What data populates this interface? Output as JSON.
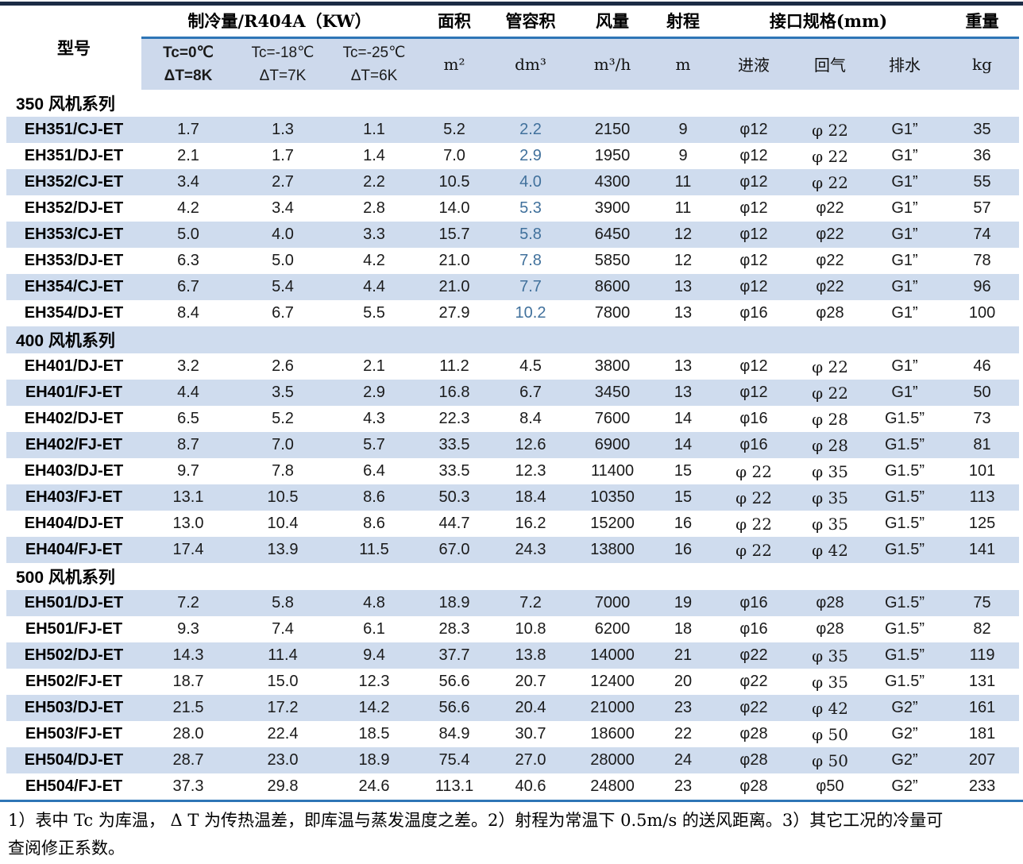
{
  "colors": {
    "rule_dark": "#1c2b45",
    "rule_blue": "#2e75b6",
    "band": "#cdd9ec",
    "stripe": "#cfdcee",
    "accent_text": "#41719c"
  },
  "table": {
    "header": {
      "model": "型号",
      "cooling_group": "制冷量/R404A（KW）",
      "temp_cols": [
        {
          "line1": "Tc=0℃",
          "line2": "ΔT=8K"
        },
        {
          "line1": "Tc=-18℃",
          "line2": "ΔT=7K"
        },
        {
          "line1": "Tc=-25℃",
          "line2": "ΔT=6K"
        }
      ],
      "area_label": "面积",
      "area_unit": "m²",
      "tube_label": "管容积",
      "tube_unit": "dm³",
      "flow_label": "风量",
      "flow_unit": "m³/h",
      "throw_label": "射程",
      "throw_unit": "m",
      "connections_group": "接口规格(mm)",
      "conn_cols": [
        "进液",
        "回气",
        "排水"
      ],
      "weight_label": "重量",
      "weight_unit": "kg"
    },
    "sections": [
      {
        "title": "350 风机系列",
        "vol_accent": true,
        "rows": [
          [
            "EH351/CJ-ET",
            "1.7",
            "1.3",
            "1.1",
            "5.2",
            "2.2",
            "2150",
            "9",
            "φ12",
            "φ 22",
            "G1”",
            "35"
          ],
          [
            "EH351/DJ-ET",
            "2.1",
            "1.7",
            "1.4",
            "7.0",
            "2.9",
            "1950",
            "9",
            "φ12",
            "φ 22",
            "G1”",
            "36"
          ],
          [
            "EH352/CJ-ET",
            "3.4",
            "2.7",
            "2.2",
            "10.5",
            "4.0",
            "4300",
            "11",
            "φ12",
            "φ 22",
            "G1”",
            "55"
          ],
          [
            "EH352/DJ-ET",
            "4.2",
            "3.4",
            "2.8",
            "14.0",
            "5.3",
            "3900",
            "11",
            "φ12",
            "φ22",
            "G1”",
            "57"
          ],
          [
            "EH353/CJ-ET",
            "5.0",
            "4.0",
            "3.3",
            "15.7",
            "5.8",
            "6450",
            "12",
            "φ12",
            "φ22",
            "G1”",
            "74"
          ],
          [
            "EH353/DJ-ET",
            "6.3",
            "5.0",
            "4.2",
            "21.0",
            "7.8",
            "5850",
            "12",
            "φ12",
            "φ22",
            "G1”",
            "78"
          ],
          [
            "EH354/CJ-ET",
            "6.7",
            "5.4",
            "4.4",
            "21.0",
            "7.7",
            "8600",
            "13",
            "φ12",
            "φ22",
            "G1”",
            "96"
          ],
          [
            "EH354/DJ-ET",
            "8.4",
            "6.7",
            "5.5",
            "27.9",
            "10.2",
            "7800",
            "13",
            "φ16",
            "φ28",
            "G1”",
            "100"
          ]
        ]
      },
      {
        "title": "400 风机系列",
        "vol_accent": false,
        "rows": [
          [
            "EH401/DJ-ET",
            "3.2",
            "2.6",
            "2.1",
            "11.2",
            "4.5",
            "3800",
            "13",
            "φ12",
            "φ 22",
            "G1”",
            "46"
          ],
          [
            "EH401/FJ-ET",
            "4.4",
            "3.5",
            "2.9",
            "16.8",
            "6.7",
            "3450",
            "13",
            "φ12",
            "φ 22",
            "G1”",
            "50"
          ],
          [
            "EH402/DJ-ET",
            "6.5",
            "5.2",
            "4.3",
            "22.3",
            "8.4",
            "7600",
            "14",
            "φ16",
            "φ 28",
            "G1.5”",
            "73"
          ],
          [
            "EH402/FJ-ET",
            "8.7",
            "7.0",
            "5.7",
            "33.5",
            "12.6",
            "6900",
            "14",
            "φ16",
            "φ 28",
            "G1.5”",
            "81"
          ],
          [
            "EH403/DJ-ET",
            "9.7",
            "7.8",
            "6.4",
            "33.5",
            "12.3",
            "11400",
            "15",
            "φ 22",
            "φ 35",
            "G1.5”",
            "101"
          ],
          [
            "EH403/FJ-ET",
            "13.1",
            "10.5",
            "8.6",
            "50.3",
            "18.4",
            "10350",
            "15",
            "φ 22",
            "φ 35",
            "G1.5”",
            "113"
          ],
          [
            "EH404/DJ-ET",
            "13.0",
            "10.4",
            "8.6",
            "44.7",
            "16.2",
            "15200",
            "16",
            "φ 22",
            "φ 35",
            "G1.5”",
            "125"
          ],
          [
            "EH404/FJ-ET",
            "17.4",
            "13.9",
            "11.5",
            "67.0",
            "24.3",
            "13800",
            "16",
            "φ 22",
            "φ 42",
            "G1.5”",
            "141"
          ]
        ]
      },
      {
        "title": "500 风机系列",
        "vol_accent": false,
        "rows": [
          [
            "EH501/DJ-ET",
            "7.2",
            "5.8",
            "4.8",
            "18.9",
            "7.2",
            "7000",
            "19",
            "φ16",
            "φ28",
            "G1.5”",
            "75"
          ],
          [
            "EH501/FJ-ET",
            "9.3",
            "7.4",
            "6.1",
            "28.3",
            "10.8",
            "6200",
            "18",
            "φ16",
            "φ28",
            "G1.5”",
            "82"
          ],
          [
            "EH502/DJ-ET",
            "14.3",
            "11.4",
            "9.4",
            "37.7",
            "13.8",
            "14000",
            "21",
            "φ22",
            "φ 35",
            "G1.5”",
            "119"
          ],
          [
            "EH502/FJ-ET",
            "18.7",
            "15.0",
            "12.3",
            "56.6",
            "20.7",
            "12400",
            "20",
            "φ22",
            "φ 35",
            "G1.5”",
            "131"
          ],
          [
            "EH503/DJ-ET",
            "21.5",
            "17.2",
            "14.2",
            "56.6",
            "20.4",
            "21000",
            "23",
            "φ22",
            "φ 42",
            "G2”",
            "161"
          ],
          [
            "EH503/FJ-ET",
            "28.0",
            "22.4",
            "18.5",
            "84.9",
            "30.7",
            "18600",
            "22",
            "φ28",
            "φ 50",
            "G2”",
            "181"
          ],
          [
            "EH504/DJ-ET",
            "28.7",
            "23.0",
            "18.9",
            "75.4",
            "27.0",
            "28000",
            "24",
            "φ28",
            "φ 50",
            "G2”",
            "207"
          ],
          [
            "EH504/FJ-ET",
            "37.3",
            "29.8",
            "24.6",
            "113.1",
            "40.6",
            "24800",
            "23",
            "φ28",
            "φ50",
            "G2”",
            "233"
          ]
        ]
      }
    ],
    "notes": [
      "1）表中 Tc 为库温， Δ T 为传热温差，即库温与蒸发温度之差。2）射程为常温下 0.5m/s 的送风距离。3）其它工况的冷量可",
      "查阅修正系数。"
    ]
  }
}
